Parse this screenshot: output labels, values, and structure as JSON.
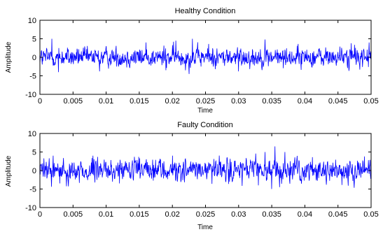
{
  "chart_data": [
    {
      "type": "line",
      "title": "Healthy Condition",
      "xlabel": "Time",
      "ylabel": "Amplitude",
      "xlim": [
        0,
        0.05
      ],
      "ylim": [
        -10,
        10
      ],
      "x_ticks": [
        "0",
        "0.005",
        "0.01",
        "0.015",
        "0.02",
        "0.025",
        "0.03",
        "0.035",
        "0.04",
        "0.045",
        "0.05"
      ],
      "y_ticks": [
        "10",
        "5",
        "0",
        "-5",
        "-10"
      ],
      "grid": false,
      "line_color": "#0000ff",
      "signal": {
        "samples": 1000,
        "typical_amplitude": 2,
        "peaks": [
          {
            "t": 0.0018,
            "y": 5
          },
          {
            "t": 0.0028,
            "y": -4
          },
          {
            "t": 0.009,
            "y": -3.8
          },
          {
            "t": 0.016,
            "y": 4
          },
          {
            "t": 0.019,
            "y": -3.5
          },
          {
            "t": 0.0205,
            "y": 4.5
          },
          {
            "t": 0.0225,
            "y": -4.5
          },
          {
            "t": 0.023,
            "y": 5
          },
          {
            "t": 0.0255,
            "y": 3.6
          },
          {
            "t": 0.03,
            "y": -3.8
          },
          {
            "t": 0.034,
            "y": 4.8
          },
          {
            "t": 0.039,
            "y": 3.6
          },
          {
            "t": 0.047,
            "y": 3.8
          },
          {
            "t": 0.0497,
            "y": 4
          }
        ]
      }
    },
    {
      "type": "line",
      "title": "Faulty Condition",
      "xlabel": "Time",
      "ylabel": "Amplitude",
      "xlim": [
        0,
        0.05
      ],
      "ylim": [
        -10,
        10
      ],
      "x_ticks": [
        "0",
        "0.005",
        "0.01",
        "0.015",
        "0.02",
        "0.025",
        "0.03",
        "0.035",
        "0.04",
        "0.045",
        "0.05"
      ],
      "y_ticks": [
        "10",
        "5",
        "0",
        "-5",
        "-10"
      ],
      "grid": false,
      "line_color": "#0000ff",
      "signal": {
        "samples": 1000,
        "typical_amplitude": 2.3,
        "peaks": [
          {
            "t": 0.002,
            "y": 4
          },
          {
            "t": 0.003,
            "y": -3.5
          },
          {
            "t": 0.008,
            "y": 4
          },
          {
            "t": 0.012,
            "y": -3.5
          },
          {
            "t": 0.02,
            "y": 4
          },
          {
            "t": 0.026,
            "y": -3.6
          },
          {
            "t": 0.033,
            "y": -4
          },
          {
            "t": 0.034,
            "y": 5
          },
          {
            "t": 0.035,
            "y": -5
          },
          {
            "t": 0.0355,
            "y": 6.5
          },
          {
            "t": 0.0362,
            "y": -4.5
          },
          {
            "t": 0.037,
            "y": 5
          },
          {
            "t": 0.049,
            "y": 3.8
          }
        ]
      }
    }
  ]
}
